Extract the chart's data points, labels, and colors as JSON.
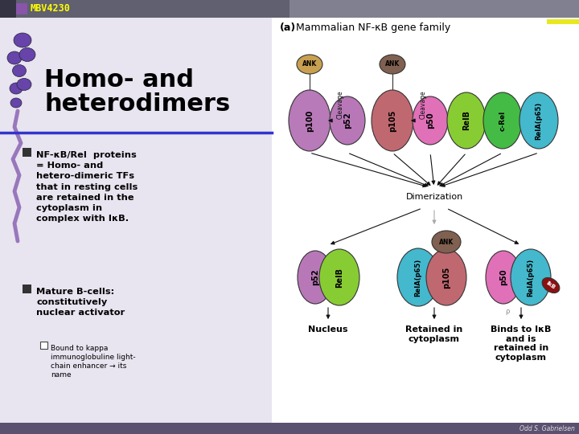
{
  "header_label": "MBV4230",
  "header_label_color": "#ffff00",
  "header_left_bg": "#606070",
  "header_right_bg": "#808090",
  "footer_text": "Odd S. Gabrielsen",
  "footer_bg": "#5a5070",
  "left_panel_bg": "#e8e4f0",
  "blue_line_color": "#3333cc",
  "title": "Homo- and\nheterodimers",
  "bullet1": "NF-κB/Rel  proteins\n= Homo- and\nhetero-dimeric TFs\nthat in resting cells\nare retained in the\ncytoplasm in\ncomplex with IκB.",
  "bullet2": "Mature B-cells:\nconstitutively\nnuclear activator",
  "sub_bullet": "Bound to kappa\nimmunoglobuline light-\nchain enhancer → its\nname",
  "diagram_label": "(a)",
  "diagram_title": "Mammalian NF-κB gene family",
  "dimerization_text": "Dimerization",
  "nucleus_text": "Nucleus",
  "retained_text": "Retained in\ncytoplasm",
  "binds_text": "Binds to IκB\nand is\nretained in\ncytoplasm",
  "yellow_bar_color": "#e8e820"
}
